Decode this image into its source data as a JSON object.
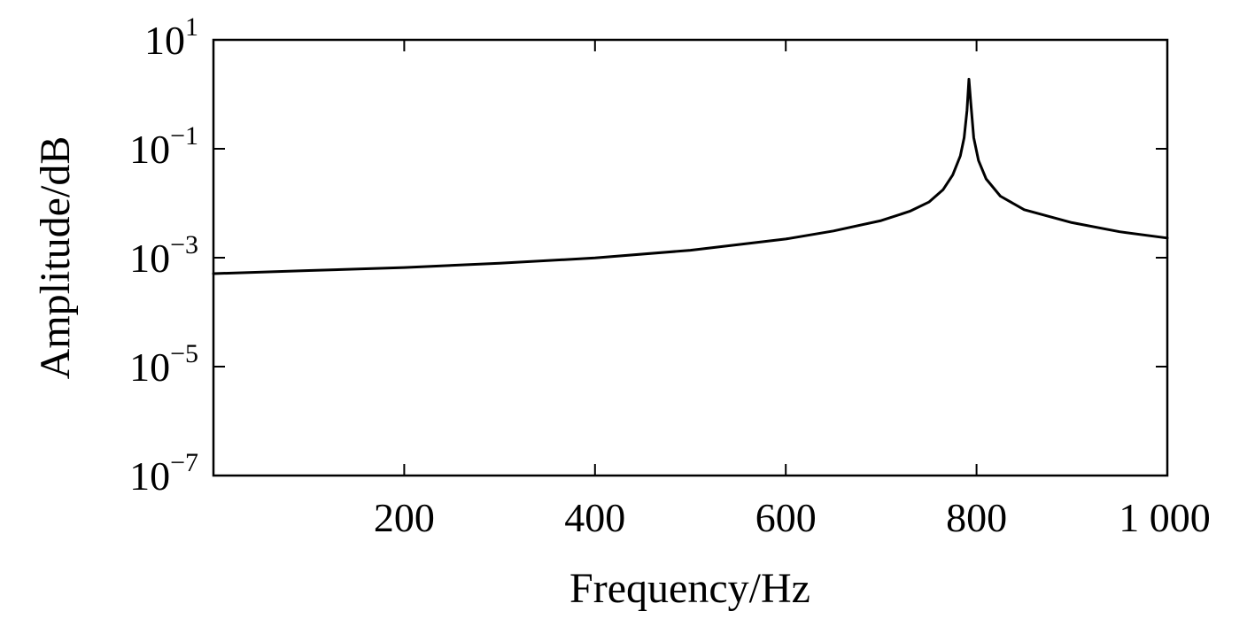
{
  "chart_data": {
    "type": "line",
    "xlabel": "Frequency/Hz",
    "ylabel": "Amplitude/dB",
    "xlim": [
      0,
      1000
    ],
    "ylim_log10": [
      -7,
      1
    ],
    "y_scale": "log",
    "grid": false,
    "x_ticks": [
      {
        "value": 200,
        "label": "200"
      },
      {
        "value": 400,
        "label": "400"
      },
      {
        "value": 600,
        "label": "600"
      },
      {
        "value": 800,
        "label": "800"
      },
      {
        "value": 1000,
        "label": "1 000"
      }
    ],
    "y_ticks": [
      {
        "value": 1,
        "base": "10",
        "exp": "1"
      },
      {
        "value": -1,
        "base": "10",
        "exp": "−1"
      },
      {
        "value": -3,
        "base": "10",
        "exp": "−3"
      },
      {
        "value": -5,
        "base": "10",
        "exp": "−5"
      },
      {
        "value": -7,
        "base": "10",
        "exp": "−7"
      }
    ],
    "series": [
      {
        "color": "#000000",
        "points": [
          {
            "x": 0,
            "y": 0.00051
          },
          {
            "x": 100,
            "y": 0.00058
          },
          {
            "x": 200,
            "y": 0.00066
          },
          {
            "x": 300,
            "y": 0.00079
          },
          {
            "x": 400,
            "y": 0.00099
          },
          {
            "x": 500,
            "y": 0.00137
          },
          {
            "x": 600,
            "y": 0.0022
          },
          {
            "x": 650,
            "y": 0.0031
          },
          {
            "x": 700,
            "y": 0.0048
          },
          {
            "x": 730,
            "y": 0.0071
          },
          {
            "x": 750,
            "y": 0.0105
          },
          {
            "x": 765,
            "y": 0.0178
          },
          {
            "x": 775,
            "y": 0.033
          },
          {
            "x": 783,
            "y": 0.074
          },
          {
            "x": 787,
            "y": 0.16
          },
          {
            "x": 790,
            "y": 0.5
          },
          {
            "x": 792,
            "y": 1.9
          },
          {
            "x": 794,
            "y": 0.7
          },
          {
            "x": 797,
            "y": 0.16
          },
          {
            "x": 802,
            "y": 0.061
          },
          {
            "x": 810,
            "y": 0.028
          },
          {
            "x": 825,
            "y": 0.0135
          },
          {
            "x": 850,
            "y": 0.0076
          },
          {
            "x": 900,
            "y": 0.0044
          },
          {
            "x": 950,
            "y": 0.003
          },
          {
            "x": 1000,
            "y": 0.0023
          }
        ]
      }
    ]
  }
}
